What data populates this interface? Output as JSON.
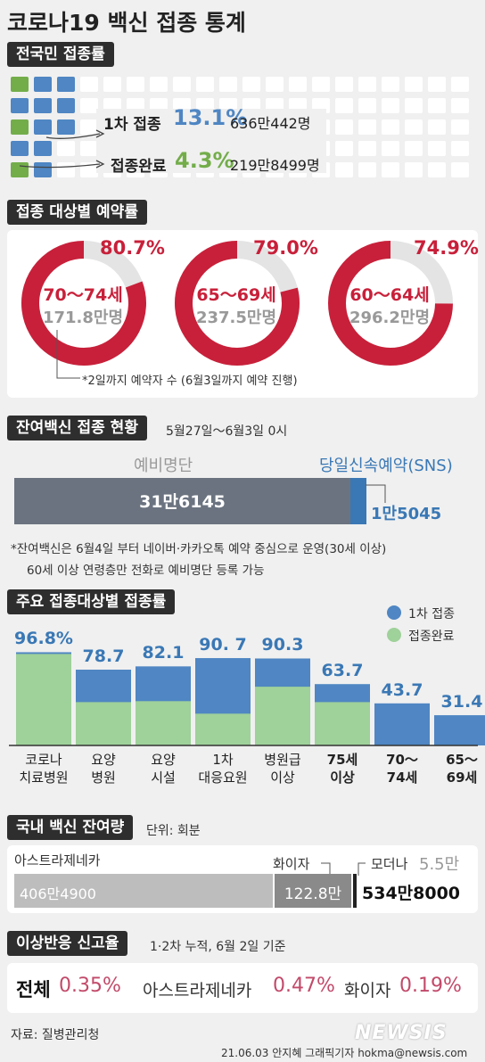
{
  "title": "코로나19 백신 접종 통계",
  "section1": {
    "heading": "전국민 접종률",
    "first": {
      "label": "1차 접종",
      "pct": "13.1%",
      "count": "636만442명",
      "value": 13.1
    },
    "full": {
      "label": "접종완료",
      "pct": "4.3%",
      "count": "219만8499명",
      "value": 4.3
    }
  },
  "section2": {
    "heading": "접종 대상별 예약률",
    "footnote": "*2일까지 예약자 수 (6월3일까지 예약 진행)",
    "donuts": [
      {
        "pct": "80.7%",
        "value": 80.7,
        "age": "70～74세",
        "pop": "171.8만명"
      },
      {
        "pct": "79.0%",
        "value": 79.0,
        "age": "65～69세",
        "pop": "237.5만명"
      },
      {
        "pct": "74.9%",
        "value": 74.9,
        "age": "60～64세",
        "pop": "296.2만명"
      }
    ]
  },
  "section3": {
    "heading": "잔여백신 접종 현황",
    "period": "5월27일～6월3일 0시",
    "left_label": "예비명단",
    "right_label": "당일신속예약(SNS)",
    "left_value": "31만6145",
    "right_value": "1만5045",
    "left_num": 316145,
    "right_num": 15045,
    "note1": "*잔여백신은 6월4일 부터 네이버·카카오톡 예약 중심으로 운영(30세 이상)",
    "note2": "60세 이상 연령층만 전화로 예비명단 등록 가능"
  },
  "section4": {
    "heading": "주요 접종대상별 접종률",
    "legend_first": "1차 접종",
    "legend_full": "접종완료"
  },
  "chart_data": {
    "type": "bar",
    "categories": [
      "코로나 치료병원",
      "요양 병원",
      "요양 시설",
      "1차 대응요원",
      "병원급 이상",
      "75세 이상",
      "70～ 74세",
      "65～ 69세"
    ],
    "category_lines": [
      [
        "코로나",
        "치료병원"
      ],
      [
        "요양",
        "병원"
      ],
      [
        "요양",
        "시설"
      ],
      [
        "1차",
        "대응요원"
      ],
      [
        "병원급",
        "이상"
      ],
      [
        "75세",
        "이상"
      ],
      [
        "70～",
        "74세"
      ],
      [
        "65～",
        "69세"
      ]
    ],
    "labels": [
      "96.8%",
      "78.7",
      "82.1",
      "90. 7",
      "90.3",
      "63.7",
      "43.7",
      "31.4"
    ],
    "series": [
      {
        "name": "1차 접종",
        "values": [
          96.8,
          78.7,
          82.1,
          90.7,
          90.3,
          63.7,
          43.7,
          31.4
        ]
      },
      {
        "name": "접종완료",
        "values": [
          95,
          45,
          46,
          33,
          61,
          45,
          0,
          0
        ]
      }
    ],
    "ylim": [
      0,
      100
    ],
    "legend": "top-right",
    "colors": {
      "first": "#4f86c3",
      "full": "#9fd19a"
    }
  },
  "section5": {
    "heading": "국내 백신 잔여량",
    "unit": "단위: 회분",
    "az_label": "아스트라제네카",
    "az_value": "406만4900",
    "pf_label": "화이자",
    "pf_value": "122.8만",
    "md_label": "모더나",
    "md_value": "5.5만",
    "total": "534만8000",
    "az_num": 4064900,
    "pf_num": 1228000,
    "md_num": 55000
  },
  "section6": {
    "heading": "이상반응 신고율",
    "basis": "1·2차 누적, 6월 2일 기준",
    "all_label": "전체",
    "all_pct": "0.35%",
    "az_label": "아스트라제네카",
    "az_pct": "0.47%",
    "pf_label": "화이자",
    "pf_pct": "0.19%"
  },
  "footer": {
    "source": "자료: 질병관리청",
    "credit": "21.06.03 안지혜 그래픽기자 hokma@newsis.com",
    "logo": "NEWSIS"
  },
  "colors": {
    "blue": "#4f86c3",
    "green": "#73ad4a",
    "red": "#c8203a",
    "dark": "#2e2e2e"
  }
}
